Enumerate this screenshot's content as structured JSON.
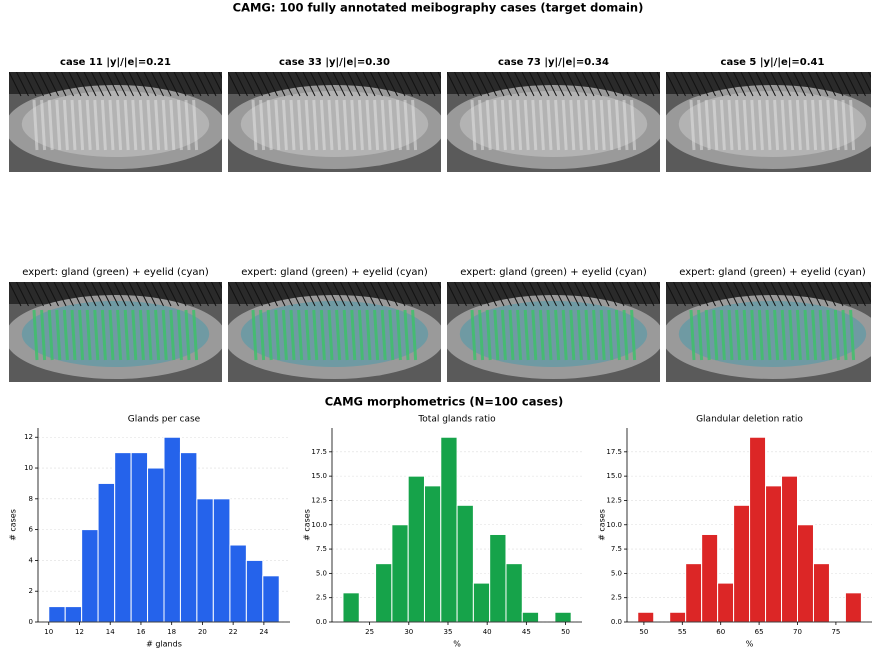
{
  "title": "CAMG: 100 fully annotated meibography cases (target domain)",
  "panels": [
    {
      "title": "case 11  |y|/|e|=0.21",
      "overlay_title": "expert: gland (green) + eyelid (cyan)"
    },
    {
      "title": "case 33  |y|/|e|=0.30",
      "overlay_title": "expert: gland (green) + eyelid (cyan)"
    },
    {
      "title": "case 73  |y|/|e|=0.34",
      "overlay_title": "expert: gland (green) + eyelid (cyan)"
    },
    {
      "title": "case 5  |y|/|e|=0.41",
      "overlay_title": "expert: gland (green) + eyelid (cyan)"
    }
  ],
  "morphometrics_title": "CAMG morphometrics (N=100 cases)",
  "chart_data": [
    {
      "type": "histogram",
      "title": "Glands per case",
      "x_label": "# glands",
      "y_label": "# cases",
      "color": "#2563eb",
      "grid": true,
      "bins": [
        10,
        11.07,
        12.14,
        13.21,
        14.29,
        15.36,
        16.43,
        17.5,
        18.57,
        19.64,
        20.71,
        21.79,
        22.86,
        23.93,
        25
      ],
      "values": [
        1,
        1,
        6,
        9,
        11,
        11,
        10,
        12,
        11,
        8,
        8,
        5,
        4,
        3
      ],
      "xlim": [
        9.3,
        25.7
      ],
      "xticks": [
        10,
        12,
        14,
        16,
        18,
        20,
        22,
        24
      ],
      "ylim": [
        0,
        12.6
      ],
      "yticks": [
        0,
        2,
        4,
        6,
        8,
        10,
        12
      ]
    },
    {
      "type": "histogram",
      "title": "Total glands ratio",
      "x_label": "%",
      "y_label": "# cases",
      "color": "#16a34a",
      "grid": true,
      "bins": [
        21.6,
        23.68,
        25.76,
        27.84,
        29.92,
        32,
        34.08,
        36.16,
        38.24,
        40.32,
        42.4,
        44.48,
        46.56,
        48.64,
        50.72
      ],
      "values": [
        3,
        0,
        6,
        10,
        15,
        14,
        19,
        12,
        4,
        9,
        6,
        1,
        0,
        1
      ],
      "xlim": [
        20.2,
        52.1
      ],
      "xticks": [
        25,
        30,
        35,
        40,
        45,
        50
      ],
      "ylim": [
        0,
        19.95
      ],
      "yticks": [
        {
          "value": 0,
          "label": "0.0"
        },
        2.5,
        {
          "value": 5,
          "label": "5.0"
        },
        7.5,
        {
          "value": 10,
          "label": "10.0"
        },
        12.5,
        {
          "value": 15,
          "label": "15.0"
        },
        17.5
      ]
    },
    {
      "type": "histogram",
      "title": "Glandular deletion ratio",
      "x_label": "%",
      "y_label": "# cases",
      "color": "#dc2626",
      "grid": true,
      "bins": [
        49.2,
        51.28,
        53.36,
        55.44,
        57.52,
        59.6,
        61.68,
        63.76,
        65.84,
        67.92,
        70,
        72.08,
        74.16,
        76.24,
        78.32
      ],
      "values": [
        1,
        0,
        1,
        6,
        9,
        4,
        12,
        19,
        14,
        15,
        10,
        6,
        0,
        3
      ],
      "xlim": [
        47.8,
        79.7
      ],
      "xticks": [
        50,
        55,
        60,
        65,
        70,
        75
      ],
      "ylim": [
        0,
        19.95
      ],
      "yticks": [
        {
          "value": 0,
          "label": "0.0"
        },
        2.5,
        {
          "value": 5,
          "label": "5.0"
        },
        7.5,
        {
          "value": 10,
          "label": "10.0"
        },
        12.5,
        {
          "value": 15,
          "label": "15.0"
        },
        17.5
      ]
    }
  ]
}
